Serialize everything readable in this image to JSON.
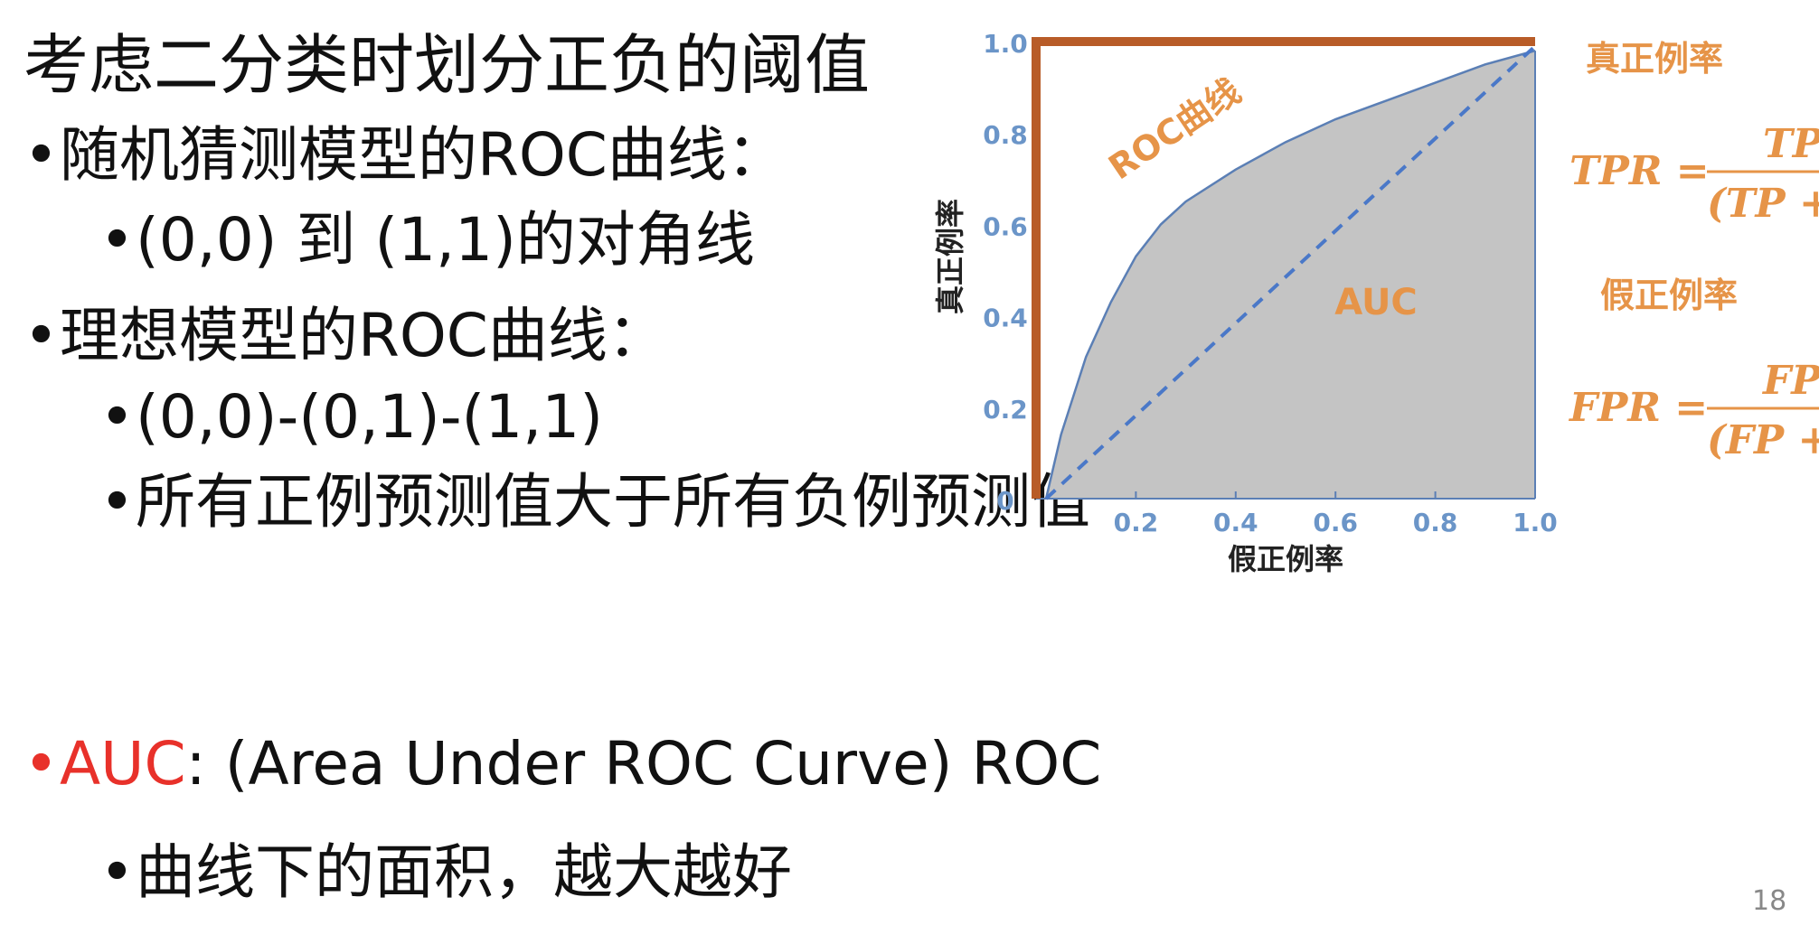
{
  "slide": {
    "title": "考虑二分类时划分正负的阈值",
    "bullets": {
      "random_guess": "随机猜测模型的ROC曲线：",
      "random_guess_sub": "(0,0) 到 (1,1)的对角线",
      "ideal": "理想模型的ROC曲线：",
      "ideal_sub1": "(0,0)-(0,1)-(1,1)",
      "ideal_sub2": "所有正例预测值大于所有负例预测值",
      "auc_key": "AUC",
      "auc_rest": ": (Area Under ROC Curve) ROC",
      "auc_sub": "曲线下的面积，越大越好"
    },
    "page_number": "18"
  },
  "chart_data": {
    "type": "area",
    "xlabel": "假正例率",
    "ylabel": "真正例率",
    "xlim": [
      0,
      1
    ],
    "ylim": [
      0,
      1
    ],
    "x_ticks": [
      "0.2",
      "0.4",
      "0.6",
      "0.8",
      "1.0"
    ],
    "y_ticks": [
      "0",
      "0.2",
      "0.4",
      "0.6",
      "0.8",
      "1.0"
    ],
    "grid": false,
    "series": [
      {
        "name": "ROC曲线",
        "x": [
          0.02,
          0.05,
          0.1,
          0.15,
          0.2,
          0.25,
          0.3,
          0.4,
          0.5,
          0.6,
          0.7,
          0.8,
          0.9,
          1.0
        ],
        "y": [
          0.0,
          0.14,
          0.31,
          0.43,
          0.53,
          0.6,
          0.65,
          0.72,
          0.78,
          0.83,
          0.87,
          0.91,
          0.95,
          0.98
        ]
      },
      {
        "name": "",
        "x": [
          0.02,
          1.0
        ],
        "y": [
          0.0,
          0.99
        ]
      }
    ],
    "ideal_curve": {
      "x": [
        0,
        0,
        1
      ],
      "y": [
        0,
        1,
        1
      ]
    },
    "annotations": {
      "roc_label": "ROC曲线",
      "auc_label": "AUC",
      "tpr_label": "真正例率",
      "fpr_label": "假正例率",
      "tpr_formula": "TPR = TP / (TP + FN)",
      "fpr_formula": "FPR = FP / (FP + TN)"
    },
    "colors": {
      "area_fill": "#c4c4c4",
      "roc_line": "#5b7fb5",
      "diagonal": "#4a78c8",
      "ideal_curve": "#b85c28",
      "tick_label": "#6b95c8",
      "annotation": "#e69448"
    }
  }
}
